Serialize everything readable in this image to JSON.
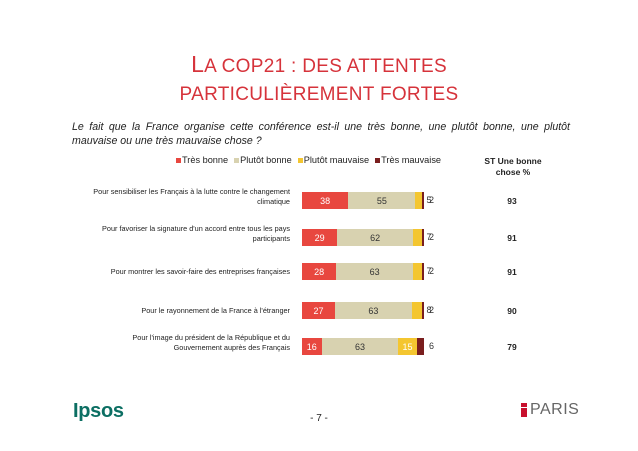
{
  "title": {
    "line1_cap": "L",
    "line1_rest": "A COP21 : DES ATTENTES",
    "line2_cap": "",
    "line2_rest": "PARTICULIÈREMENT FORTES"
  },
  "question": "Le fait que la France organise cette conférence est-il une très bonne, une plutôt bonne, une plutôt mauvaise ou une très mauvaise chose ?",
  "st_header": "ST Une bonne chose %",
  "colors": {
    "tres_bonne": "#e8473f",
    "plutot_bonne": "#d8d2b0",
    "plutot_mauvaise": "#f4c630",
    "tres_mauvaise": "#7a1e1e",
    "brand_red": "#c8102e",
    "ipsos_green": "#0c6f63"
  },
  "chart_data": {
    "type": "bar",
    "orientation": "horizontal",
    "stacked": true,
    "legend_position": "top",
    "series": [
      {
        "name": "Très bonne",
        "values": [
          38,
          29,
          28,
          27,
          16
        ]
      },
      {
        "name": "Plutôt bonne",
        "values": [
          55,
          62,
          63,
          63,
          63
        ]
      },
      {
        "name": "Plutôt mauvaise",
        "values": [
          5,
          7,
          7,
          8,
          15
        ]
      },
      {
        "name": "Très mauvaise",
        "values": [
          2,
          2,
          2,
          2,
          6
        ]
      }
    ],
    "categories": [
      "Pour sensibiliser les Français à la lutte contre le changement climatique",
      "Pour favoriser la signature d'un accord entre tous les pays participants",
      "Pour montrer les savoir-faire des entreprises françaises",
      "Pour le rayonnement de la France à l'étranger",
      "Pour l'image du président de la République et du Gouvernement auprès des Français"
    ],
    "st_bonne": [
      93,
      91,
      91,
      90,
      79
    ]
  },
  "footer": {
    "brand": "Ipsos",
    "page": "- 7 -",
    "city": "PARIS"
  }
}
